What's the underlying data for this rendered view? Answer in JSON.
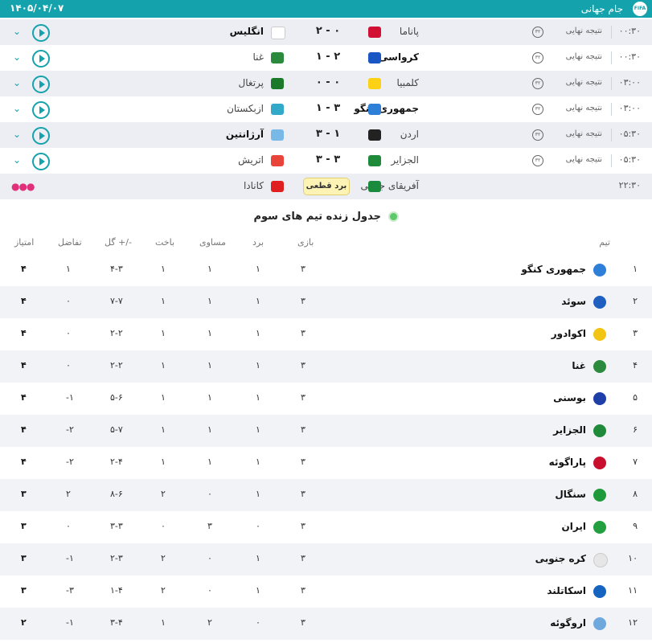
{
  "header": {
    "date": "۱۴۰۵/۰۴/۰۷",
    "title": "جام جهانی",
    "logo": "FIFA"
  },
  "matches": [
    {
      "time": "۰۰:۳۰",
      "status": "نتیجه نهایی",
      "badge": "۳۲",
      "home": "پاناما",
      "home_color": "#d21034",
      "score": "۰  -  ۲",
      "away": "انگلیس",
      "away_color": "#ffffff",
      "winner": "away"
    },
    {
      "time": "۰۰:۳۰",
      "status": "نتیجه نهایی",
      "badge": "۳۲",
      "home": "کرواسی",
      "home_color": "#1a56c4",
      "score": "۲  -  ۱",
      "away": "غنا",
      "away_color": "#2b8a3e",
      "winner": "home"
    },
    {
      "time": "۰۳:۰۰",
      "status": "نتیجه نهایی",
      "badge": "۳۲",
      "home": "کلمبیا",
      "home_color": "#fcd116",
      "score": "۰  -  ۰",
      "away": "پرتغال",
      "away_color": "#1b7a2a",
      "winner": "none"
    },
    {
      "time": "۰۳:۰۰",
      "status": "نتیجه نهایی",
      "badge": "۳۲",
      "home": "جمهوری کنگو",
      "home_color": "#2e7fd8",
      "score": "۳  -  ۱",
      "away": "ازبکستان",
      "away_color": "#33a9c9",
      "winner": "home"
    },
    {
      "time": "۰۵:۳۰",
      "status": "نتیجه نهایی",
      "badge": "۳۲",
      "home": "اردن",
      "home_color": "#222222",
      "score": "۱  -  ۳",
      "away": "آرژانتین",
      "away_color": "#78b9e7",
      "winner": "away"
    },
    {
      "time": "۰۵:۳۰",
      "status": "نتیجه نهایی",
      "badge": "۳۲",
      "home": "الجزایر",
      "home_color": "#1f8a3a",
      "score": "۳  -  ۳",
      "away": "اتریش",
      "away_color": "#e8443a",
      "winner": "none"
    },
    {
      "time": "۲۲:۳۰",
      "status": "",
      "badge": "",
      "home": "آفریقای جنوبی",
      "home_color": "#1a8a3c",
      "score": "",
      "away": "کانادا",
      "away_color": "#e02020",
      "winner": "none",
      "final_label": "برد قطعی"
    }
  ],
  "table": {
    "title": "جدول زنده تیم های سوم",
    "headers": {
      "team": "تیم",
      "played": "بازی",
      "won": "برد",
      "draw": "مساوی",
      "lost": "باخت",
      "goals": "گل +/-",
      "diff": "تفاضل",
      "pts": "امتیاز"
    },
    "rows": [
      {
        "rank": "۱",
        "team": "جمهوری کنگو",
        "flag": "#2e7fd8",
        "played": "۳",
        "won": "۱",
        "draw": "۱",
        "lost": "۱",
        "goals": "۴-۳",
        "diff": "۱",
        "pts": "۴"
      },
      {
        "rank": "۲",
        "team": "سوئد",
        "flag": "#1f5fbf",
        "played": "۳",
        "won": "۱",
        "draw": "۱",
        "lost": "۱",
        "goals": "۷-۷",
        "diff": "۰",
        "pts": "۴"
      },
      {
        "rank": "۳",
        "team": "اکوادور",
        "flag": "#f2c414",
        "played": "۳",
        "won": "۱",
        "draw": "۱",
        "lost": "۱",
        "goals": "۲-۲",
        "diff": "۰",
        "pts": "۴"
      },
      {
        "rank": "۴",
        "team": "غنا",
        "flag": "#2b8a3e",
        "played": "۳",
        "won": "۱",
        "draw": "۱",
        "lost": "۱",
        "goals": "۲-۲",
        "diff": "۰",
        "pts": "۴"
      },
      {
        "rank": "۵",
        "team": "بوسنی",
        "flag": "#1f3fa8",
        "played": "۳",
        "won": "۱",
        "draw": "۱",
        "lost": "۱",
        "goals": "۵-۶",
        "diff": "-۱",
        "pts": "۴"
      },
      {
        "rank": "۶",
        "team": "الجزایر",
        "flag": "#1f8a3a",
        "played": "۳",
        "won": "۱",
        "draw": "۱",
        "lost": "۱",
        "goals": "۵-۷",
        "diff": "-۲",
        "pts": "۴"
      },
      {
        "rank": "۷",
        "team": "پاراگوئه",
        "flag": "#c8102e",
        "played": "۳",
        "won": "۱",
        "draw": "۱",
        "lost": "۱",
        "goals": "۲-۴",
        "diff": "-۲",
        "pts": "۴"
      },
      {
        "rank": "۸",
        "team": "سنگال",
        "flag": "#1f9a3a",
        "played": "۳",
        "won": "۱",
        "draw": "۰",
        "lost": "۲",
        "goals": "۸-۶",
        "diff": "۲",
        "pts": "۳"
      },
      {
        "rank": "۹",
        "team": "ایران",
        "flag": "#239f40",
        "played": "۳",
        "won": "۰",
        "draw": "۳",
        "lost": "۰",
        "goals": "۳-۳",
        "diff": "۰",
        "pts": "۳"
      },
      {
        "rank": "۱۰",
        "team": "کره جنوبی",
        "flag": "#e6e6e6",
        "played": "۳",
        "won": "۱",
        "draw": "۰",
        "lost": "۲",
        "goals": "۲-۳",
        "diff": "-۱",
        "pts": "۳"
      },
      {
        "rank": "۱۱",
        "team": "اسکاتلند",
        "flag": "#1565c0",
        "played": "۳",
        "won": "۱",
        "draw": "۰",
        "lost": "۲",
        "goals": "۱-۴",
        "diff": "-۳",
        "pts": "۳"
      },
      {
        "rank": "۱۲",
        "team": "اروگوئه",
        "flag": "#6fa8dc",
        "played": "۳",
        "won": "۰",
        "draw": "۲",
        "lost": "۱",
        "goals": "۳-۴",
        "diff": "-۱",
        "pts": "۲"
      }
    ]
  },
  "colors": {
    "accent": "#14a3ad",
    "row_shade": "#eceef3",
    "highlight": "#fdf3b5"
  }
}
